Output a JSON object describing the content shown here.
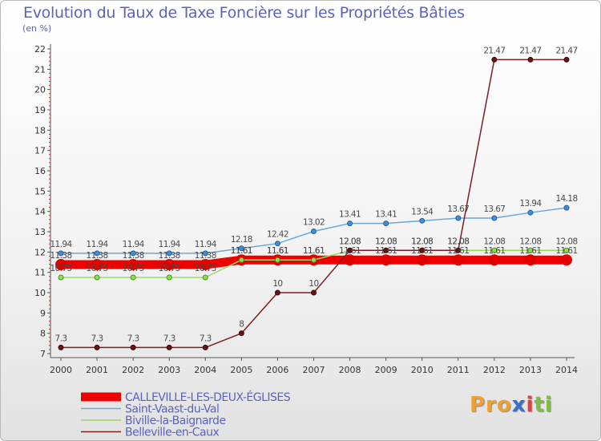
{
  "title": "Evolution du Taux de Taxe Foncière sur les Propriétés Bâties",
  "unit_label": "(en %)",
  "logo": {
    "parts": [
      "Pro",
      "x",
      "i",
      "ti"
    ],
    "colors": [
      "#f0a030",
      "#3a6fc8",
      "#e04040",
      "#7cc040"
    ]
  },
  "chart_data": {
    "type": "line",
    "x": [
      "2000",
      "2001",
      "2002",
      "2003",
      "2004",
      "2005",
      "2006",
      "2007",
      "2008",
      "2009",
      "2010",
      "2011",
      "2012",
      "2013",
      "2014"
    ],
    "ylim": [
      7,
      22
    ],
    "yticks": [
      "7",
      "8",
      "9",
      "10",
      "11",
      "12",
      "13",
      "14",
      "15",
      "16",
      "17",
      "18",
      "19",
      "20",
      "21",
      "22"
    ],
    "grid": false,
    "legend_position": "bottom-left",
    "series": [
      {
        "name": "CALLEVILLE-LES-DEUX-ÉGLISES",
        "color": "#ee0000",
        "values": [
          11.38,
          11.38,
          11.38,
          11.38,
          11.38,
          11.61,
          11.61,
          11.61,
          11.61,
          11.61,
          11.61,
          11.61,
          11.61,
          11.61,
          11.61
        ],
        "labels": [
          "11.38",
          "11.38",
          "11.38",
          "11.38",
          "11.38",
          "11.61",
          "11.61",
          "11.61",
          "11.61",
          "11.61",
          "11.61",
          "11.61",
          "11.61",
          "11.61",
          "11.61"
        ]
      },
      {
        "name": "Saint-Vaast-du-Val",
        "color": "#6aa8dc",
        "values": [
          11.94,
          11.94,
          11.94,
          11.94,
          11.94,
          12.18,
          12.42,
          13.02,
          13.41,
          13.41,
          13.54,
          13.67,
          13.67,
          13.94,
          14.18
        ],
        "labels": [
          "11.94",
          "11.94",
          "11.94",
          "11.94",
          "11.94",
          "12.18",
          "12.42",
          "13.02",
          "13.41",
          "13.41",
          "13.54",
          "13.67",
          "13.67",
          "13.94",
          "14.18"
        ]
      },
      {
        "name": "Biville-la-Baignarde",
        "color": "#99d86a",
        "values": [
          10.75,
          10.75,
          10.75,
          10.75,
          10.75,
          11.61,
          11.61,
          11.61,
          12.08,
          12.08,
          12.08,
          12.08,
          12.08,
          12.08,
          12.08
        ],
        "labels": [
          "10.75",
          "10.75",
          "10.75",
          "10.75",
          "10.75",
          "11.61",
          "11.61",
          "11.61",
          "12.08",
          "12.08",
          "12.08",
          "12.08",
          "12.08",
          "12.08",
          "12.08"
        ]
      },
      {
        "name": "Belleville-en-Caux",
        "color": "#7a2020",
        "values": [
          7.3,
          7.3,
          7.3,
          7.3,
          7.3,
          8,
          10,
          10,
          12.08,
          12.08,
          12.08,
          12.08,
          21.47,
          21.47,
          21.47
        ],
        "labels": [
          "7.3",
          "7.3",
          "7.3",
          "7.3",
          "7.3",
          "8",
          "10",
          "10",
          "12.08",
          "12.08",
          "12.08",
          "12.08",
          "21.47",
          "21.47",
          "21.47"
        ]
      }
    ]
  }
}
